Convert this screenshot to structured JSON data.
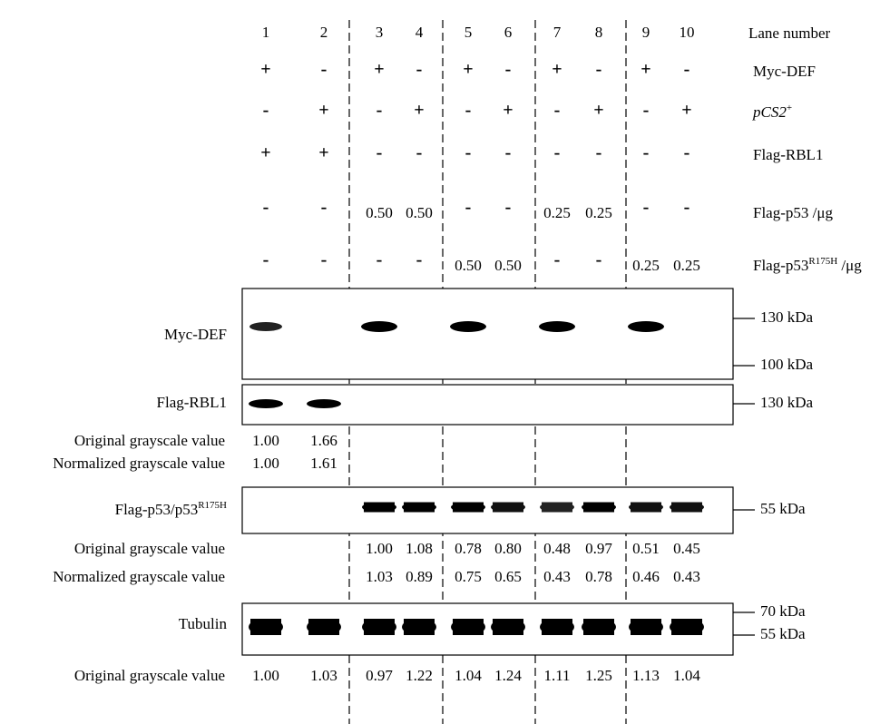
{
  "lanes": [
    "1",
    "2",
    "3",
    "4",
    "5",
    "6",
    "7",
    "8",
    "9",
    "10"
  ],
  "lane_header": "Lane number",
  "conditions": [
    {
      "label": "Myc-DEF",
      "values": [
        "+",
        "-",
        "+",
        "-",
        "+",
        "-",
        "+",
        "-",
        "+",
        "-"
      ]
    },
    {
      "label": "pCS2",
      "sup": "+",
      "values": [
        "-",
        "+",
        "-",
        "+",
        "-",
        "+",
        "-",
        "+",
        "-",
        "+"
      ]
    },
    {
      "label": "Flag-RBL1",
      "values": [
        "+",
        "+",
        "-",
        "-",
        "-",
        "-",
        "-",
        "-",
        "-",
        "-"
      ]
    },
    {
      "label": "Flag-p53 /μg",
      "values": [
        "-",
        "-",
        "0.50",
        "0.50",
        "-",
        "-",
        "0.25",
        "0.25",
        "-",
        "-"
      ]
    },
    {
      "label": "Flag-p53",
      "sup": "R175H",
      "suffix": " /μg",
      "values": [
        "-",
        "-",
        "-",
        "-",
        "0.50",
        "0.50",
        "-",
        "-",
        "0.25",
        "0.25"
      ]
    }
  ],
  "blots": [
    {
      "label": "Myc-DEF",
      "markers": [
        "130 kDa",
        "100 kDa"
      ],
      "rows": []
    },
    {
      "label": "Flag-RBL1",
      "markers": [
        "130 kDa"
      ],
      "rows": [
        {
          "label": "Original grayscale value",
          "values": [
            "1.00",
            "1.66",
            null,
            null,
            null,
            null,
            null,
            null,
            null,
            null
          ]
        },
        {
          "label": "Normalized grayscale value",
          "values": [
            "1.00",
            "1.61",
            null,
            null,
            null,
            null,
            null,
            null,
            null,
            null
          ]
        }
      ]
    },
    {
      "label": "Flag-p53/p53",
      "sup": "R175H",
      "markers": [
        "55 kDa"
      ],
      "rows": [
        {
          "label": "Original grayscale value",
          "values": [
            null,
            null,
            "1.00",
            "1.08",
            "0.78",
            "0.80",
            "0.48",
            "0.97",
            "0.51",
            "0.45"
          ]
        },
        {
          "label": "Normalized grayscale value",
          "values": [
            null,
            null,
            "1.03",
            "0.89",
            "0.75",
            "0.65",
            "0.43",
            "0.78",
            "0.46",
            "0.43"
          ]
        }
      ]
    },
    {
      "label": "Tubulin",
      "markers": [
        "70 kDa",
        "55 kDa"
      ],
      "rows": [
        {
          "label": "Original grayscale value",
          "values": [
            "1.00",
            "1.03",
            "0.97",
            "1.22",
            "1.04",
            "1.24",
            "1.11",
            "1.25",
            "1.13",
            "1.04"
          ]
        }
      ]
    }
  ]
}
